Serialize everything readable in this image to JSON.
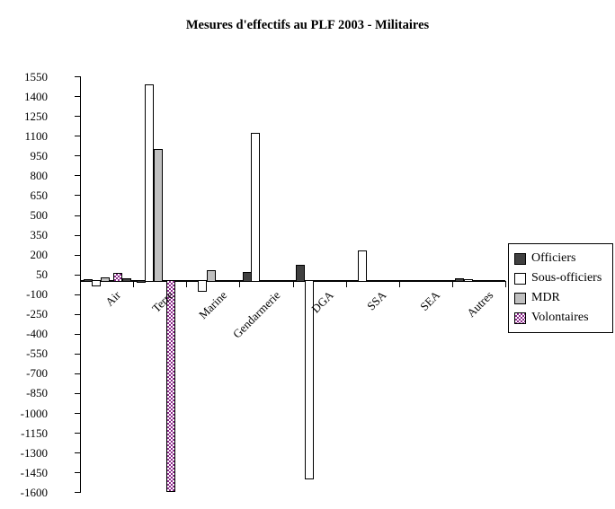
{
  "chart_data": {
    "type": "bar",
    "title": "Mesures d'effectifs au PLF 2003 - Militaires",
    "categories": [
      "Air",
      "Terre",
      "Marine",
      "Gendarmerie",
      "DGA",
      "SSA",
      "SEA",
      "Autres"
    ],
    "series": [
      {
        "name": "Officiers",
        "fill": "#404040",
        "pattern": "solid",
        "values": [
          15,
          -15,
          -10,
          70,
          120,
          0,
          0,
          20
        ]
      },
      {
        "name": "Sous-officiers",
        "fill": "#ffffff",
        "pattern": "solid",
        "values": [
          -40,
          1490,
          -85,
          1120,
          -1500,
          230,
          0,
          15
        ]
      },
      {
        "name": "MDR",
        "fill": "#c0c0c0",
        "pattern": "solid",
        "values": [
          30,
          1000,
          85,
          0,
          0,
          0,
          0,
          0
        ]
      },
      {
        "name": "Volontaires",
        "fill": "#8c288c",
        "pattern": "checker",
        "values": [
          60,
          -1600,
          -10,
          0,
          0,
          0,
          0,
          0
        ]
      }
    ],
    "extra_bars": [
      {
        "category_index": 0,
        "fill": "#404040",
        "pattern": "solid",
        "value": 20,
        "note": "small dark bar after Volontaires in Air group"
      }
    ],
    "ylim": [
      -1600,
      1550
    ],
    "ytick_step": 150,
    "ytick_labels": [
      1550,
      1400,
      1250,
      1100,
      950,
      800,
      650,
      500,
      350,
      200,
      50,
      -100,
      -250,
      -400,
      -550,
      -700,
      -850,
      -1000,
      -1150,
      -1300,
      -1450,
      -1600
    ],
    "grid": false,
    "legend_position": "right",
    "colors": {
      "axis": "#000000",
      "background": "#ffffff",
      "bar_outline": "#000000"
    }
  }
}
